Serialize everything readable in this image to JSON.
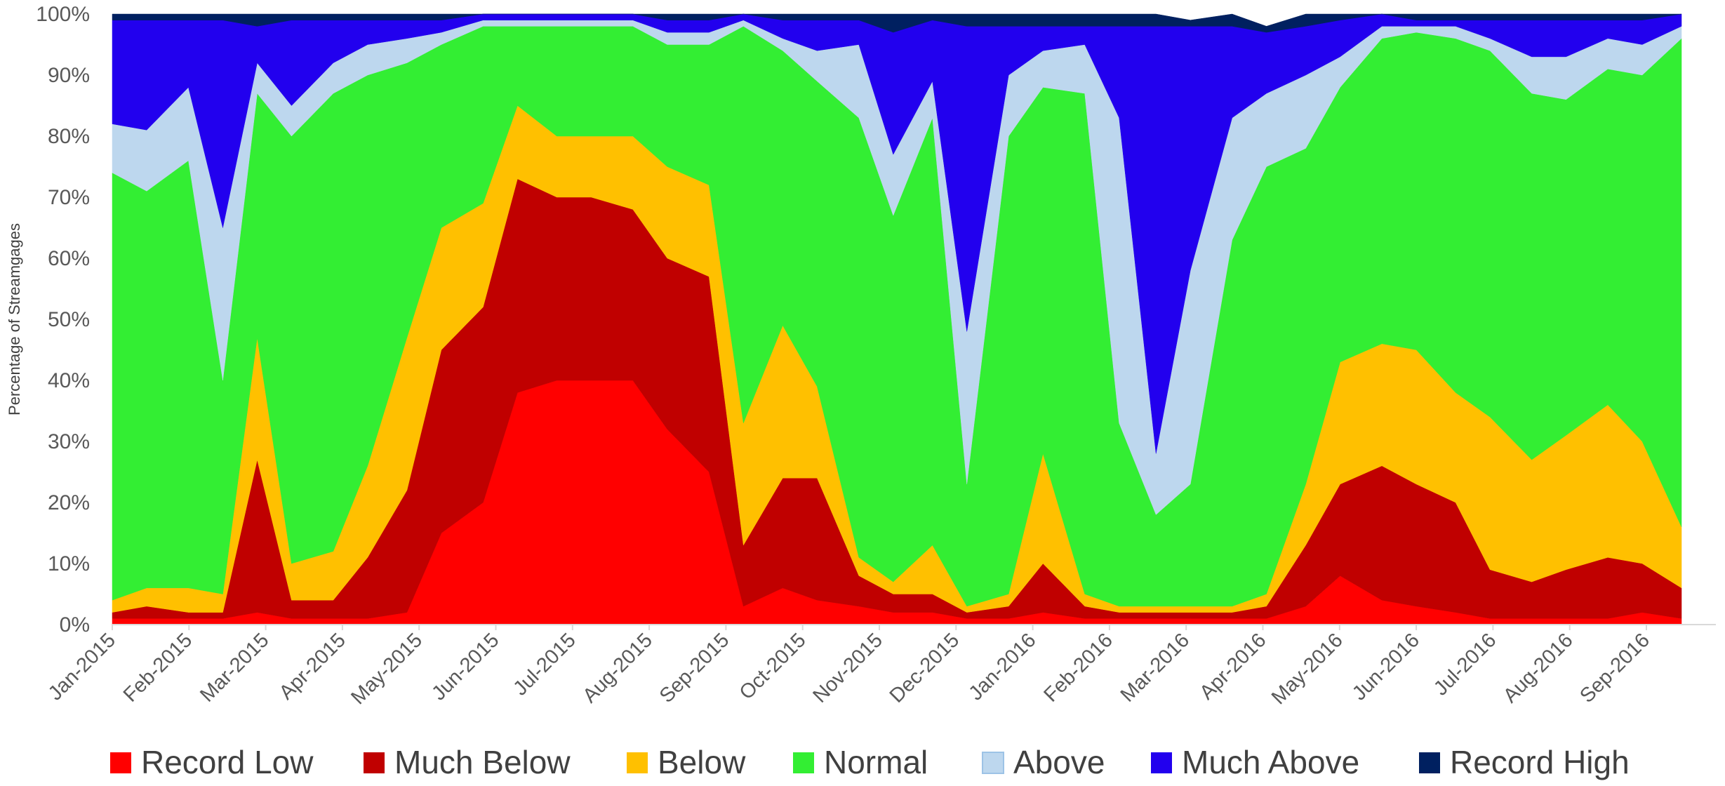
{
  "chart_data": {
    "type": "area",
    "stacked": "percent",
    "title": "",
    "xlabel": "",
    "ylabel": "Percentage of Streamgages",
    "ylim": [
      0,
      100
    ],
    "y_ticks": [
      "0%",
      "10%",
      "20%",
      "30%",
      "40%",
      "50%",
      "60%",
      "70%",
      "80%",
      "90%",
      "100%"
    ],
    "x_ticks": [
      "Jan-2015",
      "Feb-2015",
      "Mar-2015",
      "Apr-2015",
      "May-2015",
      "Jun-2015",
      "Jul-2015",
      "Aug-2015",
      "Sep-2015",
      "Oct-2015",
      "Nov-2015",
      "Dec-2015",
      "Jan-2016",
      "Feb-2016",
      "Mar-2016",
      "Apr-2016",
      "May-2016",
      "Jun-2016",
      "Jul-2016",
      "Aug-2016",
      "Sep-2016"
    ],
    "grid": false,
    "legend_position": "bottom",
    "x": [
      "2015-01-01",
      "2015-01-15",
      "2015-02-01",
      "2015-02-15",
      "2015-03-01",
      "2015-03-15",
      "2015-04-01",
      "2015-04-15",
      "2015-05-01",
      "2015-05-15",
      "2015-06-01",
      "2015-06-15",
      "2015-07-01",
      "2015-07-15",
      "2015-08-01",
      "2015-08-15",
      "2015-09-01",
      "2015-09-15",
      "2015-10-01",
      "2015-10-15",
      "2015-11-01",
      "2015-11-15",
      "2015-12-01",
      "2015-12-15",
      "2016-01-01",
      "2016-01-15",
      "2016-02-01",
      "2016-02-15",
      "2016-03-01",
      "2016-03-15",
      "2016-04-01",
      "2016-04-15",
      "2016-05-01",
      "2016-05-15",
      "2016-06-01",
      "2016-06-15",
      "2016-07-01",
      "2016-07-15",
      "2016-08-01",
      "2016-08-15",
      "2016-09-01",
      "2016-09-15",
      "2016-10-01"
    ],
    "series": [
      {
        "name": "Record Low",
        "color": "#ff0000",
        "values": [
          1,
          1,
          1,
          1,
          2,
          1,
          1,
          1,
          2,
          15,
          20,
          38,
          40,
          40,
          40,
          32,
          25,
          3,
          6,
          4,
          3,
          2,
          2,
          1,
          1,
          2,
          1,
          1,
          1,
          1,
          1,
          1,
          3,
          8,
          4,
          3,
          2,
          1,
          1,
          1,
          1,
          2,
          1
        ]
      },
      {
        "name": "Much Below",
        "color": "#c00000",
        "values": [
          1,
          2,
          1,
          1,
          25,
          3,
          3,
          10,
          20,
          30,
          32,
          35,
          30,
          30,
          28,
          28,
          32,
          10,
          18,
          20,
          5,
          3,
          3,
          1,
          2,
          8,
          2,
          1,
          1,
          1,
          1,
          2,
          10,
          15,
          22,
          20,
          18,
          8,
          6,
          8,
          10,
          8,
          5
        ]
      },
      {
        "name": "Below",
        "color": "#ffc000",
        "values": [
          2,
          3,
          4,
          3,
          20,
          6,
          8,
          15,
          25,
          20,
          17,
          12,
          10,
          10,
          12,
          15,
          15,
          20,
          25,
          15,
          3,
          2,
          8,
          1,
          2,
          18,
          2,
          1,
          1,
          1,
          1,
          2,
          10,
          20,
          20,
          22,
          18,
          25,
          20,
          22,
          25,
          20,
          10
        ]
      },
      {
        "name": "Normal",
        "color": "#33ee33",
        "values": [
          70,
          65,
          70,
          35,
          40,
          70,
          75,
          64,
          45,
          30,
          29,
          13,
          18,
          18,
          18,
          20,
          23,
          65,
          45,
          50,
          72,
          60,
          70,
          20,
          75,
          60,
          82,
          30,
          15,
          20,
          60,
          70,
          55,
          45,
          50,
          52,
          58,
          60,
          60,
          55,
          55,
          60,
          80
        ]
      },
      {
        "name": "Above",
        "color": "#bdd7ee",
        "values": [
          8,
          10,
          12,
          25,
          5,
          5,
          5,
          5,
          4,
          2,
          1,
          1,
          1,
          1,
          1,
          2,
          2,
          1,
          2,
          5,
          12,
          10,
          6,
          25,
          10,
          6,
          8,
          50,
          10,
          35,
          20,
          12,
          12,
          5,
          2,
          1,
          2,
          2,
          6,
          7,
          5,
          5,
          2
        ]
      },
      {
        "name": "Much Above",
        "color": "#2200ee",
        "values": [
          17,
          18,
          11,
          34,
          6,
          14,
          7,
          4,
          3,
          2,
          1,
          1,
          1,
          1,
          1,
          2,
          2,
          1,
          3,
          5,
          4,
          20,
          10,
          50,
          8,
          4,
          3,
          15,
          70,
          40,
          15,
          10,
          8,
          6,
          2,
          1,
          1,
          3,
          6,
          6,
          3,
          4,
          2
        ]
      },
      {
        "name": "Record High",
        "color": "#002060",
        "values": [
          1,
          1,
          1,
          1,
          2,
          1,
          1,
          1,
          1,
          1,
          0,
          0,
          0,
          0,
          0,
          1,
          1,
          0,
          1,
          1,
          1,
          3,
          1,
          2,
          2,
          2,
          2,
          2,
          2,
          1,
          2,
          1,
          2,
          1,
          0,
          1,
          1,
          1,
          1,
          1,
          1,
          1,
          0
        ]
      }
    ]
  }
}
